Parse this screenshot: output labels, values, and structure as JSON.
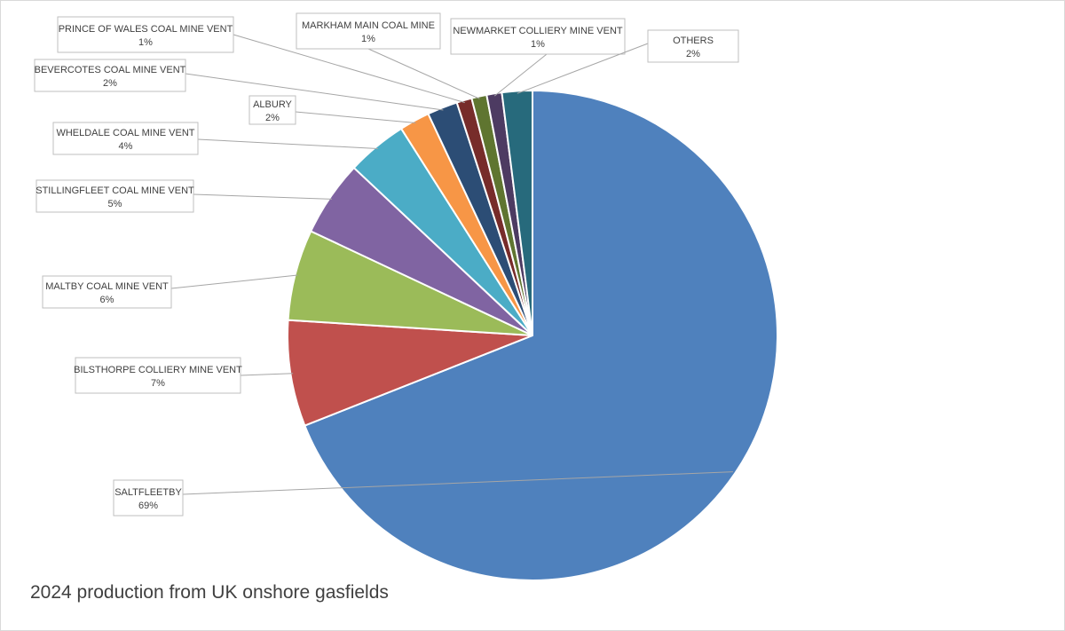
{
  "chart_data": {
    "type": "pie",
    "title": "2024 production from UK onshore gasfields",
    "slices": [
      {
        "name": "SALTFLEETBY",
        "value": 69,
        "label": "69%",
        "color": "#4F81BD"
      },
      {
        "name": "BILSTHORPE COLLIERY MINE VENT",
        "value": 7,
        "label": "7%",
        "color": "#C0504D"
      },
      {
        "name": "MALTBY COAL MINE VENT",
        "value": 6,
        "label": "6%",
        "color": "#9BBB59"
      },
      {
        "name": "STILLINGFLEET COAL MINE VENT",
        "value": 5,
        "label": "5%",
        "color": "#8064A2"
      },
      {
        "name": "WHELDALE COAL MINE VENT",
        "value": 4,
        "label": "4%",
        "color": "#4BACC6"
      },
      {
        "name": "ALBURY",
        "value": 2,
        "label": "2%",
        "color": "#F79646"
      },
      {
        "name": "BEVERCOTES COAL MINE VENT",
        "value": 2,
        "label": "2%",
        "color": "#2C4D75"
      },
      {
        "name": "PRINCE OF WALES COAL MINE VENT",
        "value": 1,
        "label": "1%",
        "color": "#772C2A"
      },
      {
        "name": "MARKHAM MAIN COAL MINE",
        "value": 1,
        "label": "1%",
        "color": "#5F7530"
      },
      {
        "name": "NEWMARKET COLLIERY MINE VENT",
        "value": 1,
        "label": "1%",
        "color": "#4D3B62"
      },
      {
        "name": "OTHERS",
        "value": 2,
        "label": "2%",
        "color": "#276A7C"
      }
    ]
  }
}
